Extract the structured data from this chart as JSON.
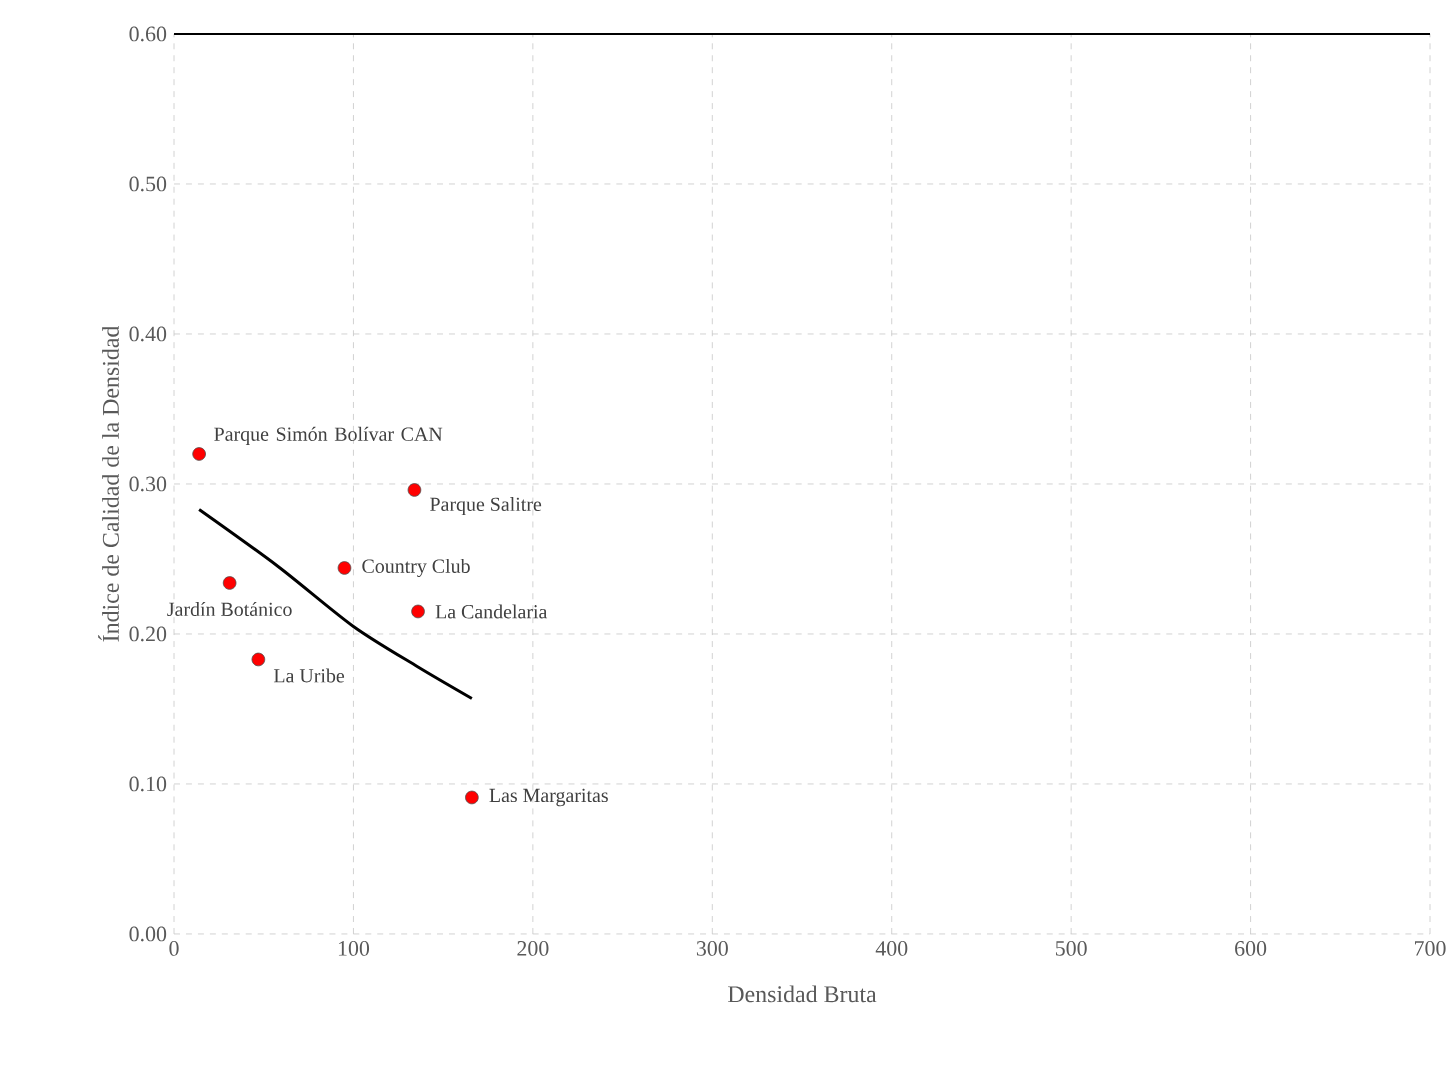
{
  "chart_data": {
    "type": "scatter",
    "xlabel": "Densidad Bruta",
    "ylabel": "Índice de Calidad de la Densidad",
    "xlim": [
      0,
      700
    ],
    "ylim": [
      0,
      0.6
    ],
    "xticks": [
      0,
      100,
      200,
      300,
      400,
      500,
      600,
      700
    ],
    "yticks": [
      {
        "value": 0,
        "label": "0.00"
      },
      {
        "value": 0.1,
        "label": "0.10"
      },
      {
        "value": 0.2,
        "label": "0.20"
      },
      {
        "value": 0.3,
        "label": "0.30"
      },
      {
        "value": 0.4,
        "label": "0.40"
      },
      {
        "value": 0.5,
        "label": "0.50"
      },
      {
        "value": 0.6,
        "label": "0.60"
      }
    ],
    "grid": true,
    "marker": "circle",
    "series": [
      {
        "color": "#ff0000",
        "x": [
          14,
          134,
          95,
          31,
          136,
          47,
          166
        ],
        "values": [
          0.32,
          0.296,
          0.244,
          0.234,
          0.215,
          0.183,
          0.091
        ]
      },
      {
        "type": "line",
        "marker": "none",
        "color": "#000000",
        "x": [
          14,
          58,
          100,
          136,
          166
        ],
        "values": [
          0.283,
          0.245,
          0.205,
          0.178,
          0.157
        ]
      }
    ],
    "annotations": [
      {
        "text": "Parque Simón Bolívar CAN",
        "x": 14,
        "y": 0.32
      },
      {
        "text": "Parque Salitre",
        "x": 134,
        "y": 0.296
      },
      {
        "text": "Country Club",
        "x": 95,
        "y": 0.244
      },
      {
        "text": "Jardín Botánico",
        "x": 31,
        "y": 0.234
      },
      {
        "text": "La Candelaria",
        "x": 136,
        "y": 0.215
      },
      {
        "text": "La Uribe",
        "x": 47,
        "y": 0.183
      },
      {
        "text": "Las Margaritas",
        "x": 166,
        "y": 0.091
      }
    ]
  }
}
